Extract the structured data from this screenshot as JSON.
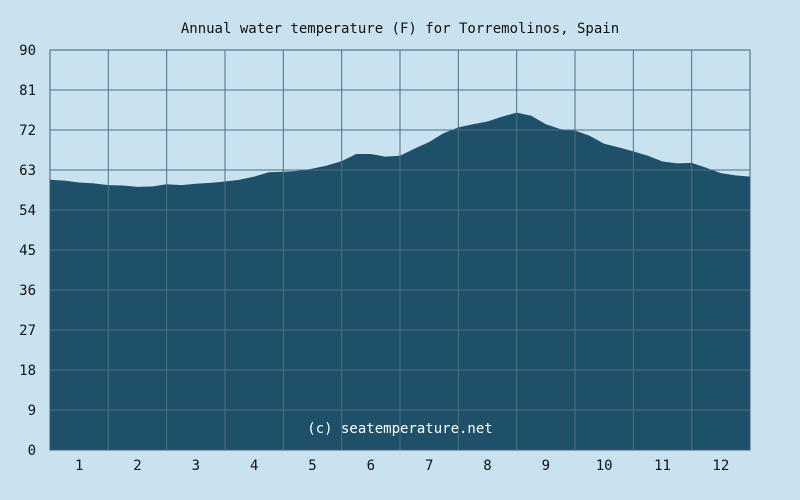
{
  "colors": {
    "background": "#c9e2ef",
    "plot_background": "#c9e2ef",
    "area_fill": "#1f506a",
    "grid": "#4f6f86",
    "text": "#111111",
    "watermark": "#ffffff"
  },
  "watermark": "(c) seatemperature.net",
  "chart_data": {
    "type": "area",
    "title": "Annual water temperature (F) for Torremolinos, Spain",
    "xlabel": "",
    "ylabel": "",
    "x_tick_labels": [
      "1",
      "2",
      "3",
      "4",
      "5",
      "6",
      "7",
      "8",
      "9",
      "10",
      "11",
      "12"
    ],
    "y_tick_labels": [
      "0",
      "9",
      "18",
      "27",
      "36",
      "45",
      "54",
      "63",
      "72",
      "81",
      "90"
    ],
    "ylim": [
      0,
      90
    ],
    "xlim": [
      0.5,
      12.5
    ],
    "grid": true,
    "series": [
      {
        "x": [
          0.5,
          0.75,
          1.0,
          1.25,
          1.5,
          1.75,
          2.0,
          2.25,
          2.5,
          2.75,
          3.0,
          3.25,
          3.5,
          3.75,
          4.0,
          4.25,
          4.5,
          4.75,
          5.0,
          5.25,
          5.5,
          5.75,
          6.0,
          6.25,
          6.5,
          6.75,
          7.0,
          7.25,
          7.5,
          7.75,
          8.0,
          8.25,
          8.5,
          8.75,
          9.0,
          9.25,
          9.5,
          9.75,
          10.0,
          10.25,
          10.5,
          10.75,
          11.0,
          11.25,
          11.5,
          11.75,
          12.0,
          12.25,
          12.5
        ],
        "values": [
          60.8,
          60.6,
          60.2,
          60.0,
          59.6,
          59.5,
          59.2,
          59.3,
          59.8,
          59.6,
          59.9,
          60.1,
          60.4,
          60.8,
          61.5,
          62.5,
          62.6,
          62.8,
          63.3,
          64.0,
          65.0,
          66.6,
          66.6,
          66.0,
          66.2,
          67.8,
          69.3,
          71.3,
          72.6,
          73.3,
          73.9,
          75.0,
          75.9,
          75.2,
          73.3,
          72.2,
          71.9,
          70.7,
          68.9,
          68.1,
          67.2,
          66.2,
          64.9,
          64.5,
          64.6,
          63.5,
          62.3,
          61.8,
          61.5
        ]
      }
    ]
  }
}
